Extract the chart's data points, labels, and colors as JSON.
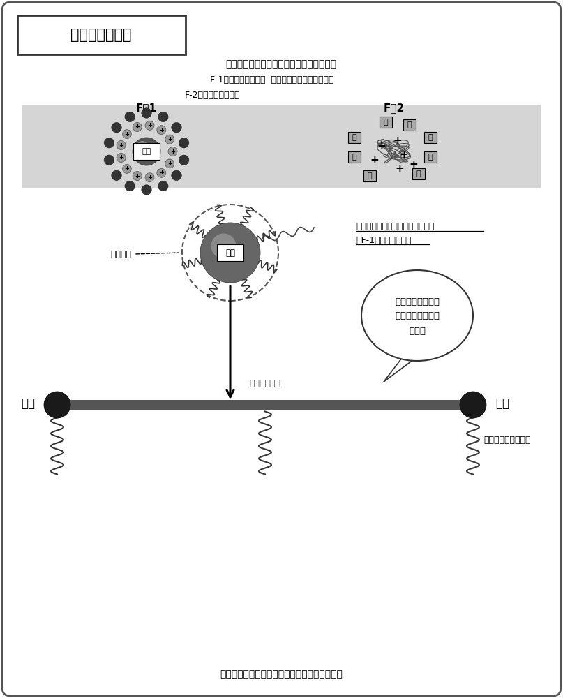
{
  "title": "分散树脂的作用",
  "text_line1": "目前纳入贵司的电泳涂料有两种不同的液体",
  "text_line2": "F-1・・・・补给颜料  分别起到这两种不同的作用",
  "text_line3": "F-2・・・・补给树脂",
  "f1_label": "F－1",
  "f2_label": "F－2",
  "pigment_label": "颜料",
  "dispersant_label": "分散树脂",
  "ann_text1": "在颜料分子四周包裹上分散树脂，",
  "ann_text2": "使F-1的颜料不易沉淀",
  "bubble_line1": "在两端末梢附着上",
  "bubble_line2": "氨基，使其易于溶",
  "bubble_line3": "解于水",
  "bar_label": "分散树脂本体",
  "left_amine": "氨基",
  "right_amine": "氨基",
  "bottom_text": "在四周包裹上紧状物体提高氨基与颜料的附着力",
  "right_text": "与酸中和溶解到水里"
}
